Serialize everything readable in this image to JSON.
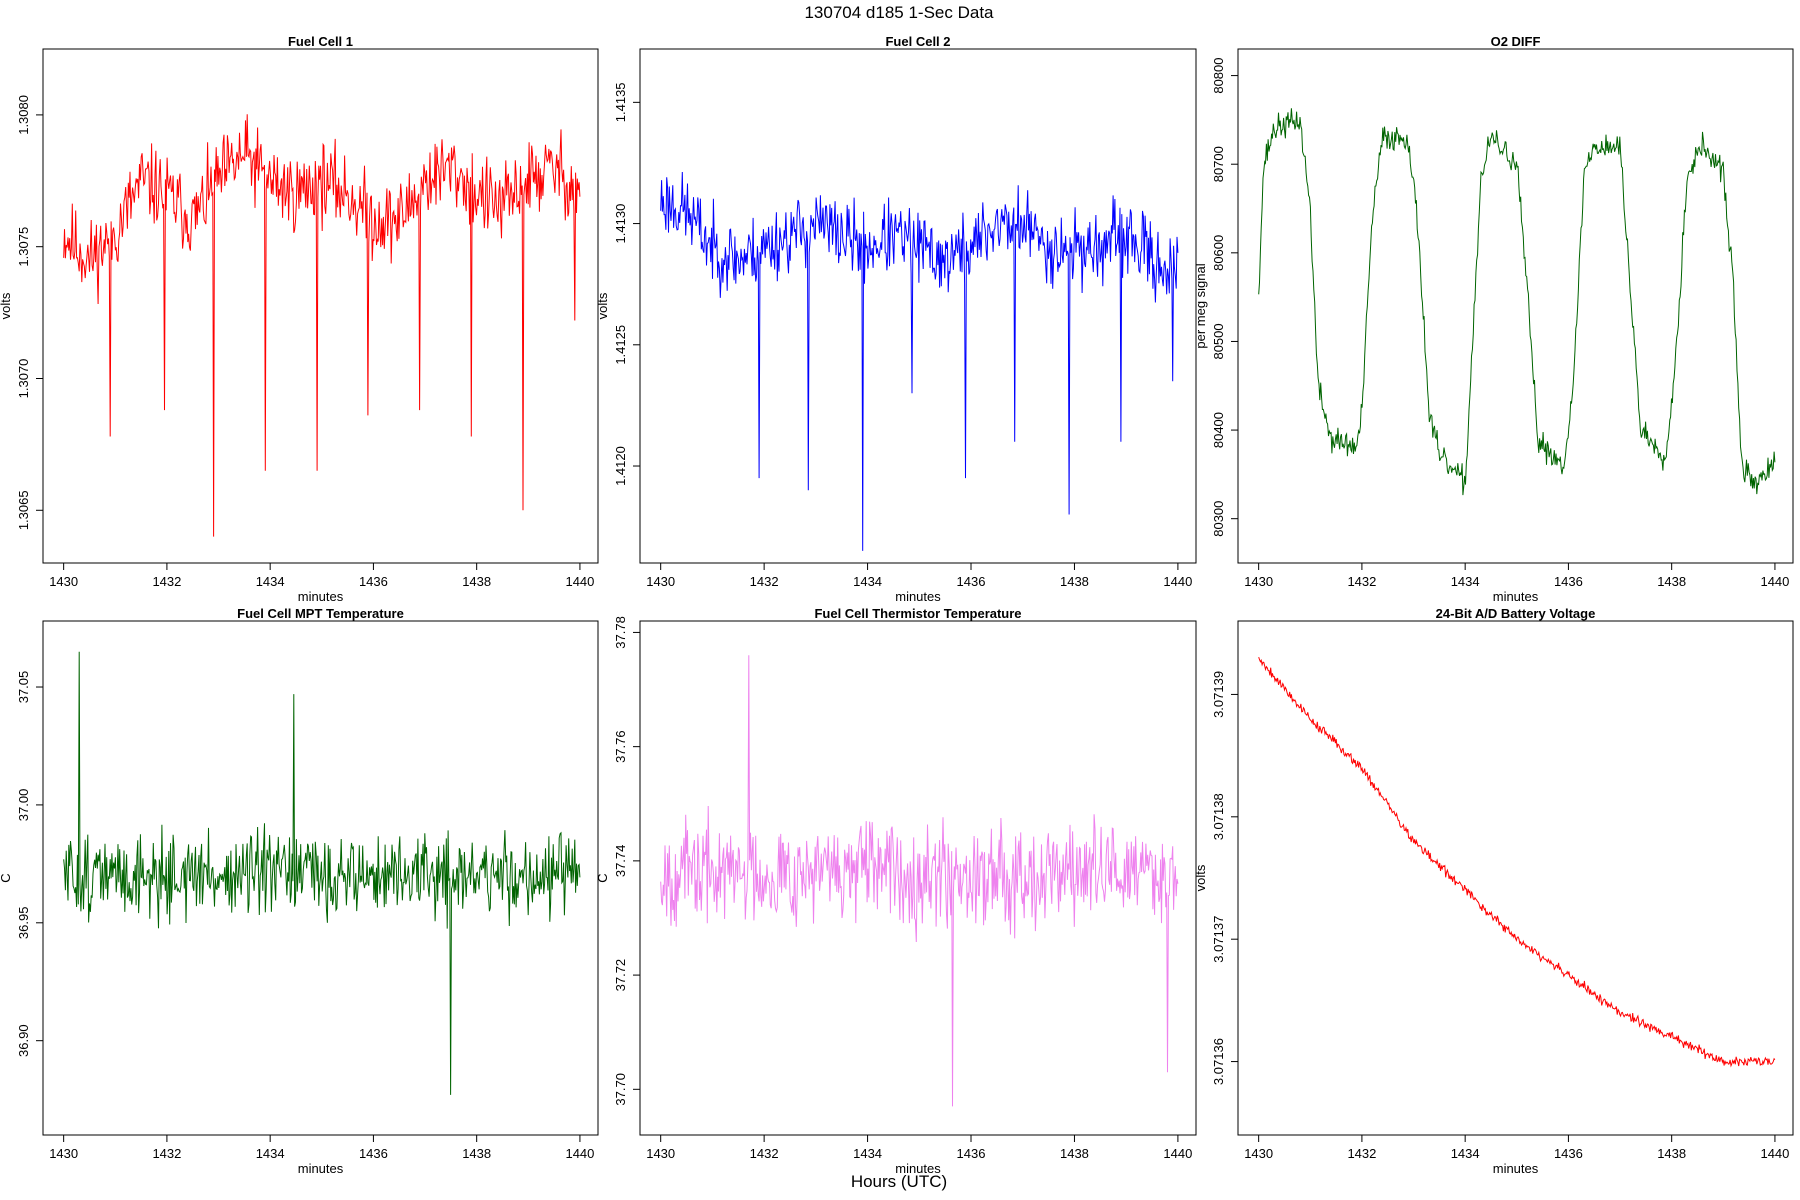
{
  "figure": {
    "title": "130704   d185   1-Sec Data",
    "xlabel": "Hours (UTC)"
  },
  "chart_data": [
    {
      "type": "line",
      "title": "Fuel Cell 1",
      "xlabel": "minutes",
      "ylabel": "volts",
      "color": "#ff0000",
      "xlim": [
        1429.6,
        1440.35
      ],
      "ylim": [
        1.3063,
        1.30825
      ],
      "xticks": [
        1430,
        1432,
        1434,
        1436,
        1438,
        1440
      ],
      "yticks": [
        1.3065,
        1.307,
        1.3075,
        1.308
      ],
      "ytick_decimals": 4,
      "series_gen": {
        "base": [
          [
            1430,
            1.30755
          ],
          [
            1430.5,
            1.30745
          ],
          [
            1431,
            1.30755
          ],
          [
            1431.5,
            1.30775
          ],
          [
            1432,
            1.3077
          ],
          [
            1432.5,
            1.3076
          ],
          [
            1433,
            1.30775
          ],
          [
            1433.5,
            1.30785
          ],
          [
            1434,
            1.30775
          ],
          [
            1434.5,
            1.3077
          ],
          [
            1435,
            1.30775
          ],
          [
            1435.5,
            1.3077
          ],
          [
            1436,
            1.3076
          ],
          [
            1436.5,
            1.3076
          ],
          [
            1437,
            1.30775
          ],
          [
            1437.5,
            1.3078
          ],
          [
            1438,
            1.3077
          ],
          [
            1438.5,
            1.30765
          ],
          [
            1439,
            1.30775
          ],
          [
            1439.5,
            1.3078
          ],
          [
            1440,
            1.3077
          ]
        ],
        "noise": 0.00022,
        "spikes": [
          [
            1430.9,
            1.30678
          ],
          [
            1431.95,
            1.30688
          ],
          [
            1432.9,
            1.3064
          ],
          [
            1433.9,
            1.30665
          ],
          [
            1434.9,
            1.30665
          ],
          [
            1435.9,
            1.30686
          ],
          [
            1436.9,
            1.30688
          ],
          [
            1437.9,
            1.30678
          ],
          [
            1438.9,
            1.3065
          ],
          [
            1439.9,
            1.30722
          ]
        ],
        "seed": 11,
        "n": 600,
        "clip": [
          1.307,
          1.3082
        ]
      }
    },
    {
      "type": "line",
      "title": "Fuel Cell 2",
      "xlabel": "minutes",
      "ylabel": "volts",
      "color": "#0000ff",
      "xlim": [
        1429.6,
        1440.35
      ],
      "ylim": [
        1.4116,
        1.41372
      ],
      "xticks": [
        1430,
        1432,
        1434,
        1436,
        1438,
        1440
      ],
      "yticks": [
        1.412,
        1.4125,
        1.413,
        1.4135
      ],
      "ytick_decimals": 4,
      "series_gen": {
        "base": [
          [
            1430,
            1.4131
          ],
          [
            1430.5,
            1.41305
          ],
          [
            1431,
            1.4129
          ],
          [
            1431.5,
            1.41285
          ],
          [
            1432,
            1.4129
          ],
          [
            1432.5,
            1.41295
          ],
          [
            1433,
            1.413
          ],
          [
            1433.5,
            1.41295
          ],
          [
            1434,
            1.4129
          ],
          [
            1434.5,
            1.41295
          ],
          [
            1435,
            1.4129
          ],
          [
            1435.5,
            1.41285
          ],
          [
            1436,
            1.4129
          ],
          [
            1436.5,
            1.413
          ],
          [
            1437,
            1.413
          ],
          [
            1437.5,
            1.4129
          ],
          [
            1438,
            1.4129
          ],
          [
            1438.5,
            1.4129
          ],
          [
            1439,
            1.41295
          ],
          [
            1439.5,
            1.41285
          ],
          [
            1440,
            1.4128
          ]
        ],
        "noise": 0.00022,
        "spikes": [
          [
            1431.9,
            1.41195
          ],
          [
            1432.85,
            1.4119
          ],
          [
            1433.9,
            1.41165
          ],
          [
            1434.85,
            1.4123
          ],
          [
            1435.9,
            1.41195
          ],
          [
            1436.85,
            1.4121
          ],
          [
            1437.9,
            1.4118
          ],
          [
            1438.9,
            1.4121
          ],
          [
            1439.9,
            1.41235
          ]
        ],
        "seed": 23,
        "n": 600,
        "clip": [
          1.4124,
          1.41355
        ]
      }
    },
    {
      "type": "line",
      "title": "O2 DIFF",
      "xlabel": "minutes",
      "ylabel": "per meg signal",
      "color": "#006400",
      "xlim": [
        1429.6,
        1440.35
      ],
      "ylim": [
        80250,
        80830
      ],
      "xticks": [
        1430,
        1432,
        1434,
        1436,
        1438,
        1440
      ],
      "yticks": [
        80300,
        80400,
        80500,
        80600,
        80700,
        80800
      ],
      "ytick_decimals": 0,
      "series_gen": {
        "base": [
          [
            1430,
            80560
          ],
          [
            1430.1,
            80700
          ],
          [
            1430.3,
            80740
          ],
          [
            1430.8,
            80750
          ],
          [
            1431.0,
            80650
          ],
          [
            1431.15,
            80450
          ],
          [
            1431.4,
            80390
          ],
          [
            1431.9,
            80380
          ],
          [
            1432.0,
            80420
          ],
          [
            1432.2,
            80640
          ],
          [
            1432.4,
            80730
          ],
          [
            1432.9,
            80730
          ],
          [
            1433.1,
            80620
          ],
          [
            1433.3,
            80420
          ],
          [
            1433.5,
            80370
          ],
          [
            1434.0,
            80340
          ],
          [
            1434.1,
            80450
          ],
          [
            1434.3,
            80680
          ],
          [
            1434.5,
            80730
          ],
          [
            1435.0,
            80700
          ],
          [
            1435.2,
            80560
          ],
          [
            1435.4,
            80390
          ],
          [
            1435.9,
            80360
          ],
          [
            1436.1,
            80450
          ],
          [
            1436.3,
            80690
          ],
          [
            1436.5,
            80720
          ],
          [
            1437.0,
            80720
          ],
          [
            1437.2,
            80560
          ],
          [
            1437.4,
            80400
          ],
          [
            1437.9,
            80370
          ],
          [
            1438.1,
            80500
          ],
          [
            1438.3,
            80690
          ],
          [
            1438.6,
            80720
          ],
          [
            1439.0,
            80690
          ],
          [
            1439.2,
            80560
          ],
          [
            1439.35,
            80360
          ],
          [
            1439.6,
            80340
          ],
          [
            1440,
            80360
          ]
        ],
        "noise": 22,
        "spikes": [],
        "seed": 37,
        "n": 600,
        "clip": [
          80270,
          80815
        ]
      }
    },
    {
      "type": "line",
      "title": "Fuel Cell MPT Temperature",
      "xlabel": "minutes",
      "ylabel": "C",
      "color": "#006400",
      "xlim": [
        1429.6,
        1440.35
      ],
      "ylim": [
        36.86,
        37.078
      ],
      "xticks": [
        1430,
        1432,
        1434,
        1436,
        1438,
        1440
      ],
      "yticks": [
        36.9,
        36.95,
        37.0,
        37.05
      ],
      "ytick_decimals": 2,
      "series_gen": {
        "base": [
          [
            1430,
            36.97
          ],
          [
            1440,
            36.97
          ]
        ],
        "noise": 0.026,
        "spikes": [
          [
            1430.3,
            37.065
          ],
          [
            1437.5,
            36.877
          ],
          [
            1434.45,
            37.047
          ]
        ],
        "seed": 51,
        "n": 600,
        "clip": [
          36.905,
          37.045
        ]
      }
    },
    {
      "type": "line",
      "title": "Fuel Cell Thermistor Temperature",
      "xlabel": "minutes",
      "ylabel": "C",
      "color": "#ee82ee",
      "xlim": [
        1429.6,
        1440.35
      ],
      "ylim": [
        37.692,
        37.782
      ],
      "xticks": [
        1430,
        1432,
        1434,
        1436,
        1438,
        1440
      ],
      "yticks": [
        37.7,
        37.72,
        37.74,
        37.76,
        37.78
      ],
      "ytick_decimals": 2,
      "series_gen": {
        "base": [
          [
            1430,
            37.738
          ],
          [
            1440,
            37.738
          ]
        ],
        "noise": 0.013,
        "spikes": [
          [
            1431.7,
            37.776
          ],
          [
            1435.65,
            37.697
          ],
          [
            1439.8,
            37.703
          ]
        ],
        "seed": 67,
        "n": 600,
        "clip": [
          37.705,
          37.772
        ]
      }
    },
    {
      "type": "line",
      "title": "24-Bit A/D Battery Voltage",
      "xlabel": "minutes",
      "ylabel": "volts",
      "color": "#ff0000",
      "xlim": [
        1429.6,
        1440.35
      ],
      "ylim": [
        3.071354,
        3.071396
      ],
      "xticks": [
        1430,
        1432,
        1434,
        1436,
        1438,
        1440
      ],
      "yticks": [
        3.07136,
        3.07137,
        3.07138,
        3.07139
      ],
      "ytick_decimals": 5,
      "series_gen": {
        "base": [
          [
            1430,
            3.071393
          ],
          [
            1431,
            3.071388
          ],
          [
            1432,
            3.071384
          ],
          [
            1433,
            3.071378
          ],
          [
            1434,
            3.071374
          ],
          [
            1435,
            3.07137
          ],
          [
            1436,
            3.071367
          ],
          [
            1437,
            3.071364
          ],
          [
            1438,
            3.071362
          ],
          [
            1439,
            3.07136
          ],
          [
            1440,
            3.07136
          ]
        ],
        "noise": 6e-07,
        "spikes": [],
        "seed": 79,
        "n": 600,
        "clip": [
          3.071356,
          3.071396
        ]
      }
    }
  ]
}
